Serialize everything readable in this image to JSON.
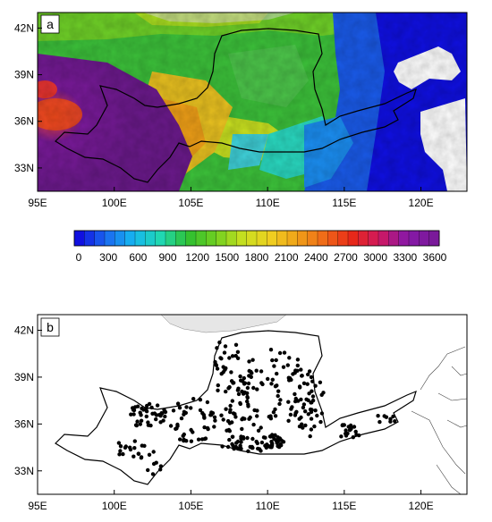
{
  "panels": [
    {
      "label": "a",
      "lat_ticks": [
        "42N",
        "39N",
        "36N",
        "33N"
      ],
      "lon_ticks": [
        "95E",
        "100E",
        "105E",
        "110E",
        "115E",
        "120E"
      ],
      "lat_values": [
        42,
        39,
        36,
        33
      ],
      "lon_values": [
        95,
        100,
        105,
        110,
        115,
        120
      ],
      "extent": {
        "lon": [
          95,
          123
        ],
        "lat": [
          31.5,
          43
        ]
      }
    },
    {
      "label": "b",
      "lat_ticks": [
        "42N",
        "39N",
        "36N",
        "33N"
      ],
      "lon_ticks": [
        "95E",
        "100E",
        "105E",
        "110E",
        "115E",
        "120E"
      ],
      "lat_values": [
        42,
        39,
        36,
        33
      ],
      "lon_values": [
        95,
        100,
        105,
        110,
        115,
        120
      ],
      "extent": {
        "lon": [
          95,
          123
        ],
        "lat": [
          31.5,
          43
        ]
      }
    }
  ],
  "colorbar": {
    "labels": [
      "0",
      "300",
      "600",
      "900",
      "1200",
      "1500",
      "1800",
      "2100",
      "2400",
      "2700",
      "3000",
      "3300",
      "3600"
    ],
    "colors": [
      "#1010e0",
      "#1b6bf0",
      "#15b8f0",
      "#20d8b0",
      "#30c030",
      "#70d020",
      "#c8e020",
      "#f0d020",
      "#f0a018",
      "#f06818",
      "#e82818",
      "#d01860",
      "#8818a8",
      "#7a1a9a"
    ]
  }
}
